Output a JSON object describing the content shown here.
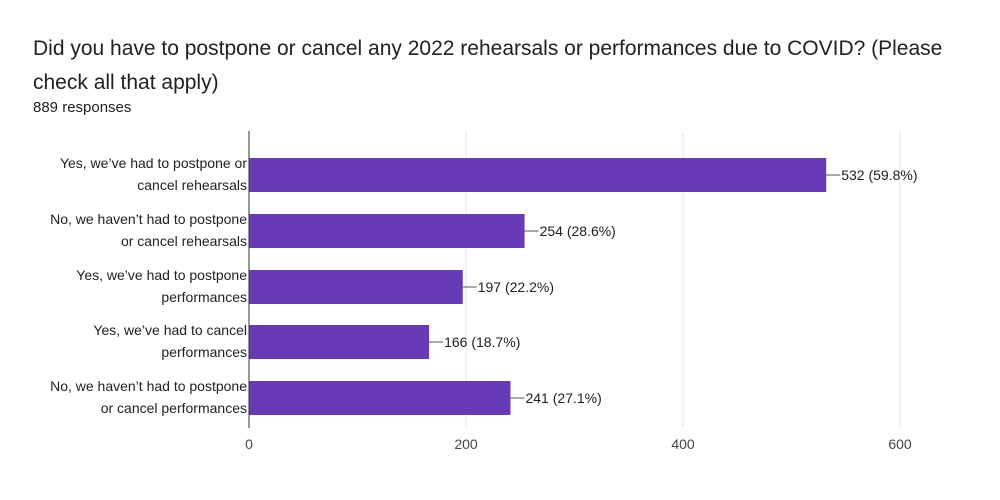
{
  "header": {
    "question": "Did you have to postpone or cancel any 2022 rehearsals or performances due to COVID? (Please check all that apply)",
    "responses": "889 responses"
  },
  "colors": {
    "bar": "#673AB7",
    "grid": "#E6E6E6",
    "axis": "#333333",
    "text": "#202124"
  },
  "chart_data": {
    "type": "bar",
    "orientation": "horizontal",
    "categories": [
      [
        "Yes, we’ve had to postpone or",
        "cancel rehearsals"
      ],
      [
        "No, we haven’t had to postpone",
        "or cancel rehearsals"
      ],
      [
        "Yes, we’ve had to postpone",
        "performances"
      ],
      [
        "Yes, we’ve had to cancel",
        "performances"
      ],
      [
        "No, we haven’t had to postpone",
        "or cancel performances"
      ]
    ],
    "values": [
      532,
      254,
      197,
      166,
      241
    ],
    "value_labels": [
      "532 (59.8%)",
      "254 (28.6%)",
      "197 (22.2%)",
      "166 (18.7%)",
      "241 (27.1%)"
    ],
    "xlim": [
      0,
      600
    ],
    "xticks": [
      0,
      200,
      400,
      600
    ],
    "grid": true
  }
}
